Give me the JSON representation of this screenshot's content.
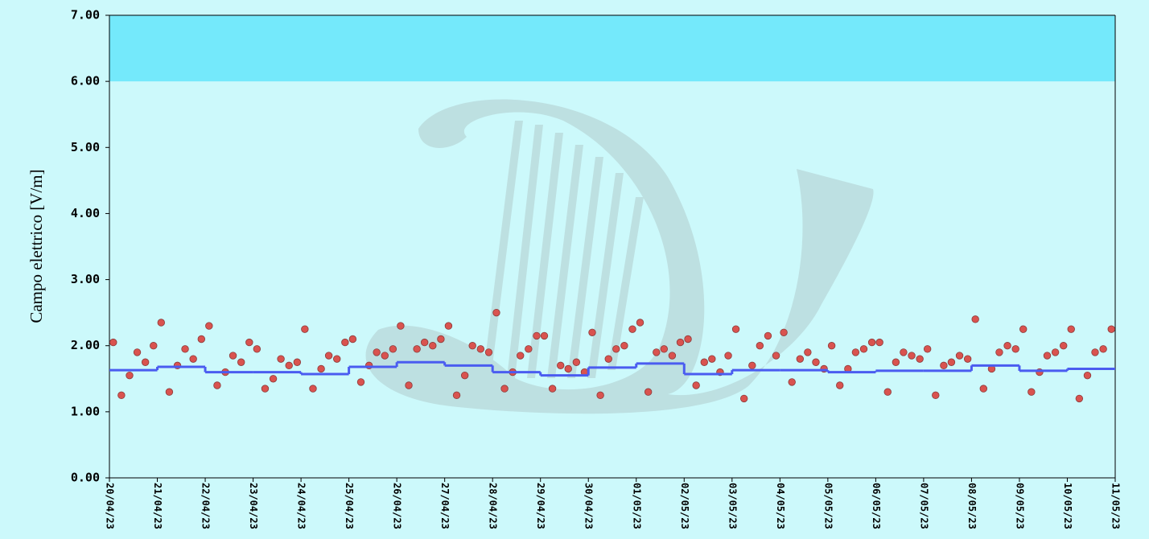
{
  "chart_data": {
    "type": "scatter",
    "y_label": "Campo elettrico [V/m]",
    "ylim": [
      0,
      7
    ],
    "yticks": [
      {
        "value": 0,
        "label": "0.00"
      },
      {
        "value": 1,
        "label": "1.00"
      },
      {
        "value": 2,
        "label": "2.00"
      },
      {
        "value": 3,
        "label": "3.00"
      },
      {
        "value": 4,
        "label": "4.00"
      },
      {
        "value": 5,
        "label": "5.00"
      },
      {
        "value": 6,
        "label": "6.00"
      },
      {
        "value": 7,
        "label": "7.00"
      }
    ],
    "xlim": [
      0,
      21
    ],
    "xticks": [
      {
        "value": 0,
        "label": "20/04/23"
      },
      {
        "value": 1,
        "label": "21/04/23"
      },
      {
        "value": 2,
        "label": "22/04/23"
      },
      {
        "value": 3,
        "label": "23/04/23"
      },
      {
        "value": 4,
        "label": "24/04/23"
      },
      {
        "value": 5,
        "label": "25/04/23"
      },
      {
        "value": 6,
        "label": "26/04/23"
      },
      {
        "value": 7,
        "label": "27/04/23"
      },
      {
        "value": 8,
        "label": "28/04/23"
      },
      {
        "value": 9,
        "label": "29/04/23"
      },
      {
        "value": 10,
        "label": "30/04/23"
      },
      {
        "value": 11,
        "label": "01/05/23"
      },
      {
        "value": 12,
        "label": "02/05/23"
      },
      {
        "value": 13,
        "label": "03/05/23"
      },
      {
        "value": 14,
        "label": "04/05/23"
      },
      {
        "value": 15,
        "label": "05/05/23"
      },
      {
        "value": 16,
        "label": "06/05/23"
      },
      {
        "value": 17,
        "label": "07/05/23"
      },
      {
        "value": 18,
        "label": "08/05/23"
      },
      {
        "value": 19,
        "label": "09/05/23"
      },
      {
        "value": 20,
        "label": "10/05/23"
      },
      {
        "value": 21,
        "label": "11/05/23"
      }
    ],
    "band": {
      "from": 6,
      "to": 7,
      "color": "#74e9fb"
    },
    "background": "#ccf9fb",
    "series": [
      {
        "color": "#d9534f",
        "x": [
          0.08,
          0.25,
          0.42,
          0.58,
          0.75,
          0.92,
          1.08,
          1.25,
          1.42,
          1.58,
          1.75,
          1.92,
          2.08,
          2.25,
          2.42,
          2.58,
          2.75,
          2.92,
          3.08,
          3.25,
          3.42,
          3.58,
          3.75,
          3.92,
          4.08,
          4.25,
          4.42,
          4.58,
          4.75,
          4.92,
          5.08,
          5.25,
          5.42,
          5.58,
          5.75,
          5.92,
          6.08,
          6.25,
          6.42,
          6.58,
          6.75,
          6.92,
          7.08,
          7.25,
          7.42,
          7.58,
          7.75,
          7.92,
          8.08,
          8.25,
          8.42,
          8.58,
          8.75,
          8.92,
          9.08,
          9.25,
          9.42,
          9.58,
          9.75,
          9.92,
          10.08,
          10.25,
          10.42,
          10.58,
          10.75,
          10.92,
          11.08,
          11.25,
          11.42,
          11.58,
          11.75,
          11.92,
          12.08,
          12.25,
          12.42,
          12.58,
          12.75,
          12.92,
          13.08,
          13.25,
          13.42,
          13.58,
          13.75,
          13.92,
          14.08,
          14.25,
          14.42,
          14.58,
          14.75,
          14.92,
          15.08,
          15.25,
          15.42,
          15.58,
          15.75,
          15.92,
          16.08,
          16.25,
          16.42,
          16.58,
          16.75,
          16.92,
          17.08,
          17.25,
          17.42,
          17.58,
          17.75,
          17.92,
          18.08,
          18.25,
          18.42,
          18.58,
          18.75,
          18.92,
          19.08,
          19.25,
          19.42,
          19.58,
          19.75,
          19.92,
          20.08,
          20.25,
          20.42,
          20.58,
          20.75,
          20.92
        ],
        "values": [
          2.05,
          1.25,
          1.55,
          1.9,
          1.75,
          2.0,
          2.35,
          1.3,
          1.7,
          1.95,
          1.8,
          2.1,
          2.3,
          1.4,
          1.6,
          1.85,
          1.75,
          2.05,
          1.95,
          1.35,
          1.5,
          1.8,
          1.7,
          1.75,
          2.25,
          1.35,
          1.65,
          1.85,
          1.8,
          2.05,
          2.1,
          1.45,
          1.7,
          1.9,
          1.85,
          1.95,
          2.3,
          1.4,
          1.95,
          2.05,
          2.0,
          2.1,
          2.3,
          1.25,
          1.55,
          2.0,
          1.95,
          1.9,
          2.5,
          1.35,
          1.6,
          1.85,
          1.95,
          2.15,
          2.15,
          1.35,
          1.7,
          1.65,
          1.75,
          1.6,
          2.2,
          1.25,
          1.8,
          1.95,
          2.0,
          2.25,
          2.35,
          1.3,
          1.9,
          1.95,
          1.85,
          2.05,
          2.1,
          1.4,
          1.75,
          1.8,
          1.6,
          1.85,
          2.25,
          1.2,
          1.7,
          2.0,
          2.15,
          1.85,
          2.2,
          1.45,
          1.8,
          1.9,
          1.75,
          1.65,
          2.0,
          1.4,
          1.65,
          1.9,
          1.95,
          2.05,
          2.05,
          1.3,
          1.75,
          1.9,
          1.85,
          1.8,
          1.95,
          1.25,
          1.7,
          1.75,
          1.85,
          1.8,
          2.4,
          1.35,
          1.65,
          1.9,
          2.0,
          1.95,
          2.25,
          1.3,
          1.6,
          1.85,
          1.9,
          2.0,
          2.25,
          1.2,
          1.55,
          1.9,
          1.95,
          2.25
        ]
      },
      {
        "type": "step",
        "color": "#4a5cf0",
        "values": [
          1.63,
          1.68,
          1.6,
          1.6,
          1.57,
          1.68,
          1.75,
          1.7,
          1.6,
          1.55,
          1.67,
          1.73,
          1.57,
          1.63,
          1.63,
          1.6,
          1.62,
          1.62,
          1.7,
          1.62,
          1.65
        ]
      }
    ]
  }
}
